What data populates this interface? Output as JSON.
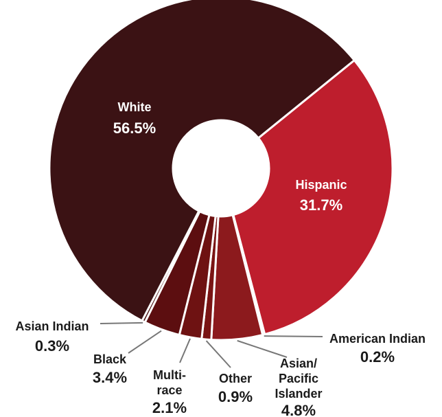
{
  "chart_data": {
    "type": "pie",
    "donut": true,
    "title": "",
    "slices": [
      {
        "label": "Hispanic",
        "value": 31.7,
        "value_label": "31.7%",
        "color": "#be1e2d"
      },
      {
        "label": "American Indian",
        "value": 0.2,
        "value_label": "0.2%",
        "color": "#a3121f"
      },
      {
        "label": "Asian/ Pacific Islander",
        "value": 4.8,
        "value_label": "4.8%",
        "color": "#8c1a1d"
      },
      {
        "label": "Other",
        "value": 0.9,
        "value_label": "0.9%",
        "color": "#7a1414"
      },
      {
        "label": "Multi-race",
        "value": 2.1,
        "value_label": "2.1%",
        "color": "#6e1212"
      },
      {
        "label": "Black",
        "value": 3.4,
        "value_label": "3.4%",
        "color": "#5c0e10"
      },
      {
        "label": "Asian Indian",
        "value": 0.3,
        "value_label": "0.3%",
        "color": "#4a1012"
      },
      {
        "label": "White",
        "value": 56.5,
        "value_label": "56.5%",
        "color": "#3b1214"
      }
    ]
  }
}
